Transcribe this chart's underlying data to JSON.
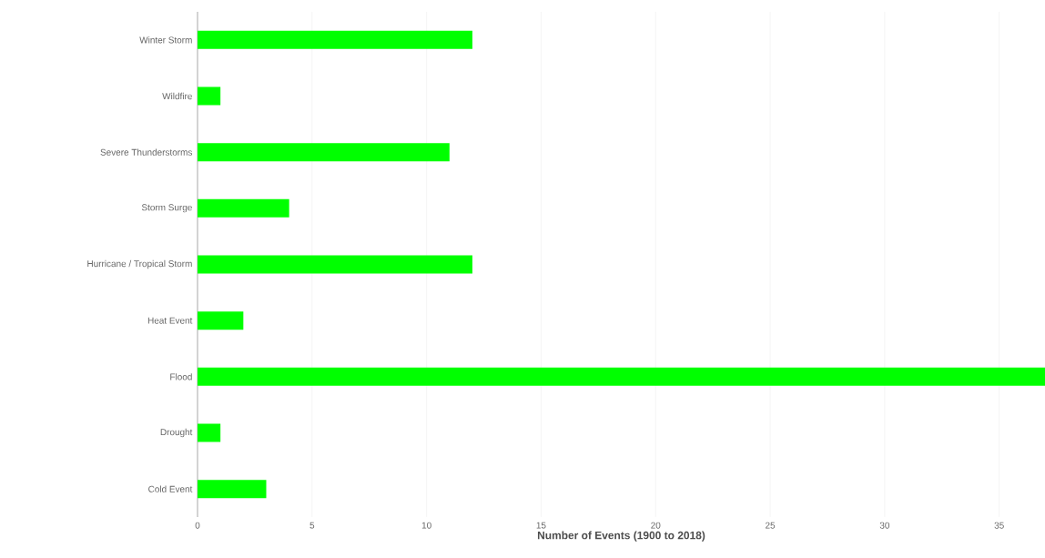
{
  "chart_data": {
    "type": "bar",
    "orientation": "horizontal",
    "xlabel": "Number of Events (1900 to 2018)",
    "categories": [
      "Winter Storm",
      "Wildfire",
      "Severe Thunderstorms",
      "Storm Surge",
      "Hurricane / Tropical Storm",
      "Heat Event",
      "Flood",
      "Drought",
      "Cold Event"
    ],
    "values": [
      12,
      1,
      11,
      4,
      12,
      2,
      37,
      1,
      3
    ],
    "color": "#00ff00",
    "xlim": [
      0,
      37
    ],
    "xticks": [
      0,
      5,
      10,
      15,
      20,
      25,
      30,
      35
    ],
    "grid": "x"
  }
}
